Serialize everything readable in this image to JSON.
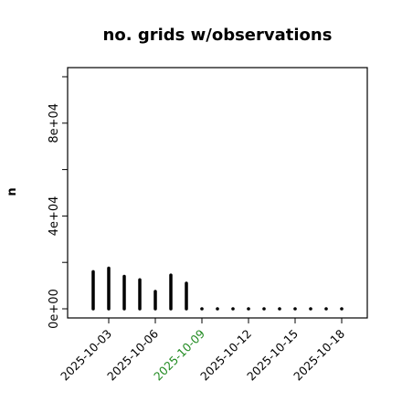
{
  "chart_data": {
    "type": "bar",
    "title": "no. grids w/observations",
    "ylabel": "n",
    "xlabel": "",
    "ylim": [
      0,
      100000
    ],
    "yticks": [
      0,
      20000,
      40000,
      60000,
      80000,
      100000
    ],
    "ytick_labels": [
      "0e+00",
      "",
      "4e+04",
      "",
      "8e+04",
      ""
    ],
    "categories": [
      "2025-10-02",
      "2025-10-03",
      "2025-10-04",
      "2025-10-05",
      "2025-10-06",
      "2025-10-07",
      "2025-10-08",
      "2025-10-09",
      "2025-10-10",
      "2025-10-11",
      "2025-10-12",
      "2025-10-13",
      "2025-10-14",
      "2025-10-15",
      "2025-10-16",
      "2025-10-17",
      "2025-10-18"
    ],
    "values": [
      16000,
      17500,
      14000,
      12500,
      7500,
      14500,
      11000,
      0,
      0,
      0,
      0,
      0,
      0,
      0,
      0,
      0,
      0
    ],
    "xtick_labels": [
      "2025-10-03",
      "2025-10-06",
      "2025-10-09",
      "2025-10-12",
      "2025-10-15",
      "2025-10-18"
    ],
    "xtick_categories": [
      "2025-10-03",
      "2025-10-06",
      "2025-10-09",
      "2025-10-12",
      "2025-10-15",
      "2025-10-18"
    ],
    "highlight_label": "2025-10-09",
    "colors": {
      "bar": "#000000",
      "label": "#000000",
      "highlight": "#228b22",
      "frame": "#000000"
    },
    "grid": false,
    "legend": "none"
  }
}
